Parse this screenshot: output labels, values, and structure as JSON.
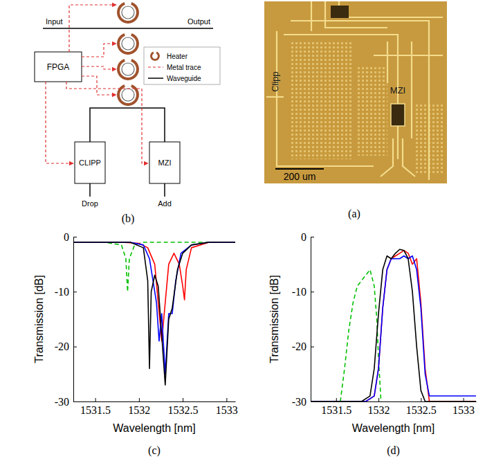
{
  "chart_data": [
    {
      "type": "line",
      "title": "(c)",
      "x_label": "Wavelength [nm]",
      "y_label": "Transmission [dB]",
      "xlim": [
        1531.25,
        1533.1
      ],
      "xticks": [
        1531.5,
        1532,
        1532.5,
        1533
      ],
      "ylim": [
        -30,
        0
      ],
      "yticks": [
        0,
        -10,
        -20,
        -30
      ],
      "grid": false,
      "series": [
        {
          "color": "#00c000",
          "line_style": "dashed",
          "x": [
            1531.25,
            1531.6,
            1531.8,
            1531.85,
            1531.87,
            1531.89,
            1531.95,
            1532.05,
            1532.15,
            1532.25,
            1532.35,
            1532.45,
            1532.6,
            1532.8,
            1533.1
          ],
          "values": [
            -1,
            -1,
            -1.5,
            -4,
            -10,
            -4,
            -1.5,
            -1,
            -1,
            -1,
            -1,
            -1,
            -1,
            -1,
            -1
          ]
        },
        {
          "color": "#ff0000",
          "line_style": "solid",
          "x": [
            1531.25,
            1531.8,
            1532.0,
            1532.1,
            1532.18,
            1532.22,
            1532.26,
            1532.3,
            1532.34,
            1532.4,
            1532.46,
            1532.5,
            1532.52,
            1532.54,
            1532.6,
            1532.8,
            1533.1
          ],
          "values": [
            -1,
            -1,
            -1.2,
            -2,
            -5,
            -12,
            -19,
            -12,
            -5,
            -3,
            -5,
            -9,
            -11.5,
            -6,
            -2,
            -1,
            -1
          ]
        },
        {
          "color": "#0000ff",
          "line_style": "solid",
          "x": [
            1531.25,
            1531.9,
            1532.05,
            1532.12,
            1532.16,
            1532.2,
            1532.23,
            1532.26,
            1532.3,
            1532.34,
            1532.38,
            1532.42,
            1532.48,
            1532.6,
            1532.8,
            1533.1
          ],
          "values": [
            -1,
            -1,
            -1.5,
            -4,
            -8,
            -12,
            -19,
            -14,
            -25,
            -14,
            -14,
            -8,
            -3,
            -1.5,
            -1,
            -1
          ]
        },
        {
          "color": "#000000",
          "line_style": "solid",
          "x": [
            1531.25,
            1531.9,
            1532.05,
            1532.1,
            1532.12,
            1532.14,
            1532.18,
            1532.22,
            1532.26,
            1532.3,
            1532.34,
            1532.38,
            1532.44,
            1532.5,
            1532.6,
            1532.8,
            1533.1
          ],
          "values": [
            -1,
            -1,
            -2,
            -8,
            -24,
            -10,
            -7,
            -9,
            -18,
            -27,
            -15,
            -13,
            -6,
            -3,
            -1.5,
            -1,
            -1
          ]
        }
      ]
    },
    {
      "type": "line",
      "title": "(d)",
      "x_label": "Wavelength [nm]",
      "y_label": "Transmission [dB]",
      "xlim": [
        1531.2,
        1533.15
      ],
      "xticks": [
        1531.5,
        1532,
        1532.5,
        1533
      ],
      "ylim": [
        -30,
        0
      ],
      "yticks": [
        0,
        -10,
        -20,
        -30
      ],
      "grid": false,
      "series": [
        {
          "color": "#00c000",
          "line_style": "dashed",
          "x": [
            1531.55,
            1531.6,
            1531.65,
            1531.7,
            1531.75,
            1531.8,
            1531.85,
            1531.9,
            1531.95,
            1531.98,
            1532.0,
            1532.03
          ],
          "values": [
            -30,
            -24,
            -17,
            -12,
            -9,
            -8,
            -7,
            -6,
            -9,
            -15,
            -22,
            -30
          ]
        },
        {
          "color": "#ff0000",
          "line_style": "solid",
          "x": [
            1531.2,
            1531.85,
            1531.95,
            1532.0,
            1532.05,
            1532.1,
            1532.15,
            1532.2,
            1532.25,
            1532.3,
            1532.35,
            1532.4,
            1532.45,
            1532.5,
            1532.55,
            1532.6,
            1533.15
          ],
          "values": [
            -30,
            -30,
            -29,
            -24,
            -13,
            -6,
            -4,
            -3.5,
            -3,
            -2.5,
            -3,
            -5,
            -4,
            -12,
            -24,
            -30,
            -30
          ]
        },
        {
          "color": "#0000ff",
          "line_style": "solid",
          "x": [
            1531.2,
            1531.85,
            1531.95,
            1532.0,
            1532.05,
            1532.1,
            1532.15,
            1532.2,
            1532.25,
            1532.3,
            1532.35,
            1532.4,
            1532.45,
            1532.5,
            1532.55,
            1532.6,
            1532.8,
            1533.0,
            1533.15
          ],
          "values": [
            -30,
            -30,
            -29,
            -24,
            -13,
            -6,
            -4,
            -4,
            -4,
            -3.5,
            -4,
            -3.5,
            -6,
            -13,
            -25,
            -29,
            -29,
            -29,
            -29
          ]
        },
        {
          "color": "#000000",
          "line_style": "solid",
          "x": [
            1531.2,
            1531.8,
            1531.9,
            1531.95,
            1532.0,
            1532.05,
            1532.1,
            1532.15,
            1532.2,
            1532.25,
            1532.3,
            1532.35,
            1532.4,
            1532.45,
            1532.5,
            1532.55,
            1533.15
          ],
          "values": [
            -30,
            -30,
            -29,
            -24,
            -14,
            -6,
            -3.5,
            -4,
            -3,
            -2.3,
            -2.5,
            -4,
            -10,
            -20,
            -28,
            -30,
            -30
          ]
        }
      ]
    }
  ],
  "diagram": {
    "label": "(b)",
    "ports": {
      "input": "Input",
      "output": "Output",
      "drop": "Drop",
      "add": "Add"
    },
    "blocks": {
      "fpga": "FPGA",
      "clipp": "CLIPP",
      "mzi": "MZI"
    },
    "legend": {
      "heater": "Heater",
      "metal_trace": "Metal trace",
      "waveguide": "Waveguide"
    }
  },
  "photo": {
    "label": "(a)",
    "clipp": "Clipp",
    "mzi": "MZI",
    "scale_bar": "200 um"
  }
}
